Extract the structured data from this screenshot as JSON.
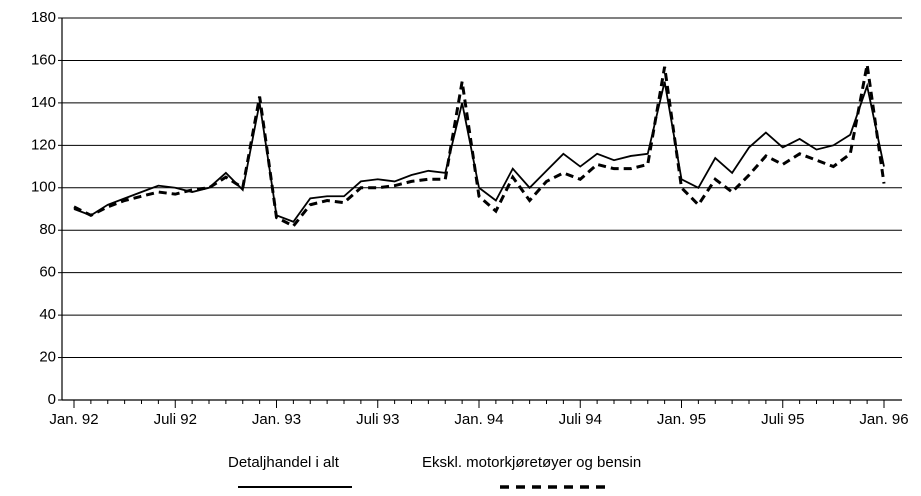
{
  "chart_data": {
    "type": "line",
    "categories": [
      "Jan. 92",
      null,
      null,
      null,
      null,
      null,
      "Juli 92",
      null,
      null,
      null,
      null,
      null,
      "Jan. 93",
      null,
      null,
      null,
      null,
      null,
      "Juli 93",
      null,
      null,
      null,
      null,
      null,
      "Jan. 94",
      null,
      null,
      null,
      null,
      null,
      "Juli 94",
      null,
      null,
      null,
      null,
      null,
      "Jan. 95",
      null,
      null,
      null,
      null,
      null,
      "Juli 95",
      null,
      null,
      null,
      null,
      null,
      "Jan. 96"
    ],
    "series": [
      {
        "name": "Detaljhandel i alt",
        "color": "#000000",
        "line_style": "solid",
        "values": [
          90,
          87,
          92,
          95,
          98,
          101,
          100,
          98,
          100,
          107,
          99,
          140,
          87,
          84,
          95,
          96,
          96,
          103,
          104,
          103,
          106,
          108,
          107,
          140,
          100,
          94,
          109,
          100,
          108,
          116,
          110,
          116,
          113,
          115,
          116,
          150,
          104,
          100,
          114,
          107,
          119,
          126,
          119,
          123,
          118,
          120,
          125,
          148,
          110
        ]
      },
      {
        "name": "Ekskl. motorkjøretøyer og bensin",
        "color": "#000000",
        "line_style": "dashed",
        "values": [
          91,
          87,
          91,
          94,
          96,
          98,
          97,
          99,
          100,
          105,
          100,
          143,
          86,
          82,
          92,
          94,
          93,
          100,
          100,
          101,
          103,
          104,
          104,
          150,
          96,
          89,
          105,
          94,
          103,
          107,
          104,
          111,
          109,
          109,
          111,
          157,
          100,
          92,
          104,
          98,
          106,
          115,
          111,
          116,
          113,
          110,
          116,
          158,
          102
        ]
      }
    ],
    "ylim": [
      0,
      180
    ],
    "yticks": [
      0,
      20,
      40,
      60,
      80,
      100,
      120,
      140,
      160,
      180
    ],
    "grid": true,
    "legend": "bottom"
  }
}
